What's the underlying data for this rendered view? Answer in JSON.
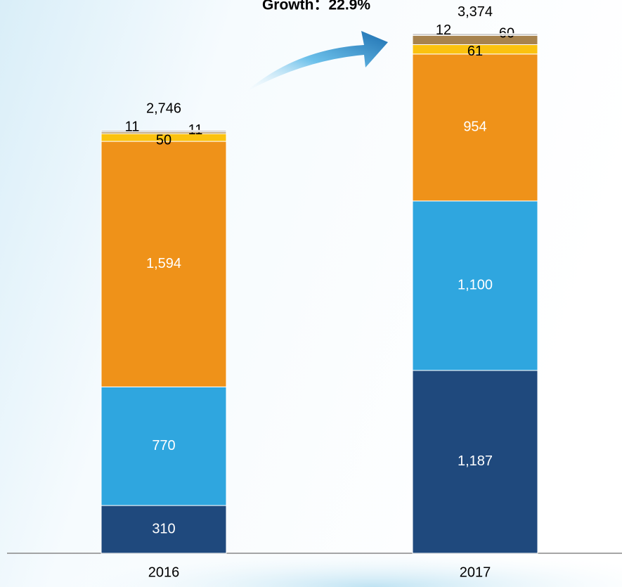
{
  "chart_data": {
    "type": "stacked_bar",
    "annotation": "Growth：22.9%",
    "categories": [
      "2016",
      "2017"
    ],
    "series": [
      {
        "color": "#1f497d",
        "values": [
          310,
          1187
        ],
        "value_labels": [
          "310",
          "1,187"
        ]
      },
      {
        "color": "#2fa6df",
        "values": [
          770,
          1100
        ],
        "value_labels": [
          "770",
          "1,100"
        ]
      },
      {
        "color": "#ef9219",
        "values": [
          1594,
          954
        ],
        "value_labels": [
          "1,594",
          "954"
        ]
      },
      {
        "color": "#fbc20f",
        "values": [
          50,
          61
        ]
      },
      {
        "color": "#a7834e",
        "values": [
          11,
          60
        ]
      },
      {
        "color": "#c8c8c8",
        "values": [
          11,
          12
        ]
      }
    ],
    "totals": [
      2746,
      3374
    ],
    "total_labels": [
      "2,746",
      "3,374"
    ],
    "ylim": [
      0,
      3400
    ]
  }
}
